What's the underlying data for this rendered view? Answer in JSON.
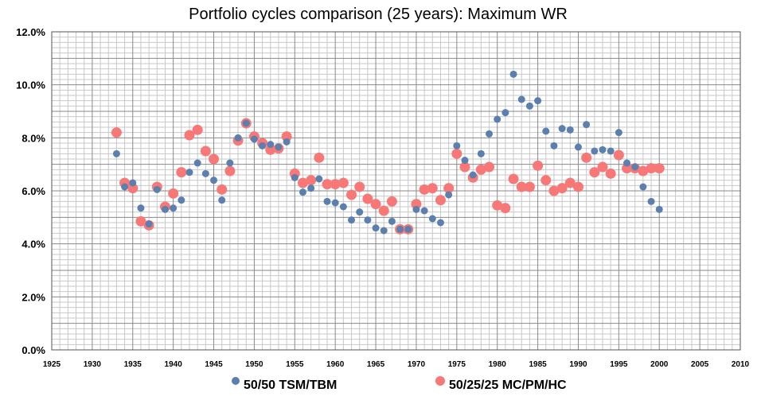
{
  "chart_data": {
    "type": "scatter",
    "title": "Portfolio cycles comparison (25 years): Maximum WR",
    "xlabel": "",
    "ylabel": "",
    "xlim": [
      1925,
      2010
    ],
    "ylim": [
      0,
      12
    ],
    "x_ticks": [
      1925,
      1930,
      1935,
      1940,
      1945,
      1950,
      1955,
      1960,
      1965,
      1970,
      1975,
      1980,
      1985,
      1990,
      1995,
      2000,
      2005,
      2010
    ],
    "x_tick_labels": [
      "1925",
      "1930",
      "1935",
      "1940",
      "1945",
      "1950",
      "1955",
      "1960",
      "1965",
      "1970",
      "1975",
      "1980",
      "1985",
      "1990",
      "1995",
      "2000",
      "2005",
      "2010"
    ],
    "y_ticks": [
      0,
      2,
      4,
      6,
      8,
      10,
      12
    ],
    "y_tick_labels": [
      "0.0%",
      "2.0%",
      "4.0%",
      "6.0%",
      "8.0%",
      "10.0%",
      "12.0%"
    ],
    "grid": true,
    "legend_position": "bottom",
    "series": [
      {
        "name": "50/50 TSM/TBM",
        "color": "#5b7fae",
        "x": [
          1933,
          1934,
          1935,
          1936,
          1937,
          1938,
          1939,
          1940,
          1941,
          1942,
          1943,
          1944,
          1945,
          1946,
          1947,
          1948,
          1949,
          1950,
          1951,
          1952,
          1953,
          1954,
          1955,
          1956,
          1957,
          1958,
          1959,
          1960,
          1961,
          1962,
          1963,
          1964,
          1965,
          1966,
          1967,
          1968,
          1969,
          1970,
          1971,
          1972,
          1973,
          1974,
          1975,
          1976,
          1977,
          1978,
          1979,
          1980,
          1981,
          1982,
          1983,
          1984,
          1985,
          1986,
          1987,
          1988,
          1989,
          1990,
          1991,
          1992,
          1993,
          1994,
          1995,
          1996,
          1997,
          1998,
          1999,
          2000
        ],
        "y": [
          7.4,
          6.15,
          6.3,
          5.35,
          4.75,
          6.05,
          5.3,
          5.35,
          5.65,
          6.7,
          7.05,
          6.65,
          6.4,
          5.65,
          7.05,
          8.0,
          8.55,
          7.95,
          7.7,
          7.75,
          7.65,
          7.85,
          6.5,
          5.95,
          6.1,
          6.45,
          5.6,
          5.55,
          5.4,
          4.9,
          5.2,
          4.9,
          4.6,
          4.5,
          4.85,
          4.55,
          4.55,
          5.3,
          5.25,
          4.95,
          4.8,
          5.85,
          7.7,
          7.15,
          6.6,
          7.4,
          8.15,
          8.7,
          8.95,
          10.4,
          9.45,
          9.2,
          9.4,
          8.25,
          7.7,
          8.35,
          8.3,
          7.65,
          8.5,
          7.5,
          7.55,
          7.5,
          8.2,
          7.05,
          6.9,
          6.15,
          5.6,
          5.3
        ]
      },
      {
        "name": "50/25/25 MC/PM/HC",
        "color": "#f87878",
        "x": [
          1933,
          1934,
          1935,
          1936,
          1937,
          1938,
          1939,
          1940,
          1941,
          1942,
          1943,
          1944,
          1945,
          1946,
          1947,
          1948,
          1949,
          1950,
          1951,
          1952,
          1953,
          1954,
          1955,
          1956,
          1957,
          1958,
          1959,
          1960,
          1961,
          1962,
          1963,
          1964,
          1965,
          1966,
          1967,
          1968,
          1969,
          1970,
          1971,
          1972,
          1973,
          1974,
          1975,
          1976,
          1977,
          1978,
          1979,
          1980,
          1981,
          1982,
          1983,
          1984,
          1985,
          1986,
          1987,
          1988,
          1989,
          1990,
          1991,
          1992,
          1993,
          1994,
          1995,
          1996,
          1997,
          1998,
          1999,
          2000
        ],
        "y": [
          8.2,
          6.3,
          6.1,
          4.85,
          4.7,
          6.15,
          5.4,
          5.9,
          6.7,
          8.1,
          8.3,
          7.5,
          7.2,
          6.05,
          6.75,
          7.9,
          8.55,
          8.05,
          7.8,
          7.55,
          7.6,
          8.05,
          6.65,
          6.3,
          6.4,
          7.25,
          6.25,
          6.25,
          6.3,
          5.85,
          6.15,
          5.7,
          5.5,
          5.25,
          5.6,
          4.55,
          4.55,
          5.5,
          6.05,
          6.1,
          5.65,
          6.1,
          7.4,
          6.9,
          6.5,
          6.8,
          6.9,
          5.45,
          5.35,
          6.45,
          6.15,
          6.15,
          6.95,
          6.4,
          6.0,
          6.1,
          6.3,
          6.15,
          7.25,
          6.7,
          6.9,
          6.65,
          7.35,
          6.85,
          6.85,
          6.75,
          6.85,
          6.85
        ]
      }
    ]
  }
}
